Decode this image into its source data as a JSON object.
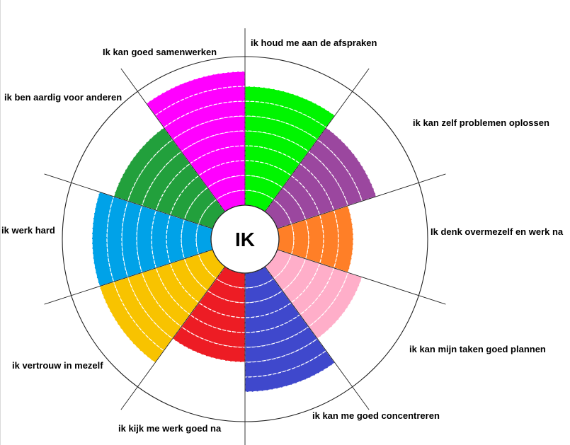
{
  "center_label": "IK",
  "colors": {
    "outline": "#222222",
    "ring_divider": "#ffffff"
  },
  "segments": [
    {
      "label": "ik houd me aan de afspraken",
      "color": "#00f500",
      "level": 8
    },
    {
      "label": "ik kan zelf problemen oplossen",
      "color": "#9b479f",
      "level": 7
    },
    {
      "label": "Ik denk overmezelf en werk na",
      "color": "#ff7f27",
      "level": 5
    },
    {
      "label": "ik kan mijn taken goed plannen",
      "color": "#ffaec9",
      "level": 6
    },
    {
      "label": "ik kan me goed concentreren",
      "color": "#3f48cc",
      "level": 8
    },
    {
      "label": "ik kijk me werk goed na",
      "color": "#ed1c24",
      "level": 6
    },
    {
      "label": "ik vertrouw in mezelf",
      "color": "#f8c300",
      "level": 8
    },
    {
      "label": "ik werk hard",
      "color": "#00a2e8",
      "level": 8
    },
    {
      "label": "ik ben aardig voor anderen",
      "color": "#22a03c",
      "level": 7
    },
    {
      "label": "Ik kan goed samenwerken",
      "color": "#ff00ff",
      "level": 9
    }
  ],
  "max_level": 10
}
